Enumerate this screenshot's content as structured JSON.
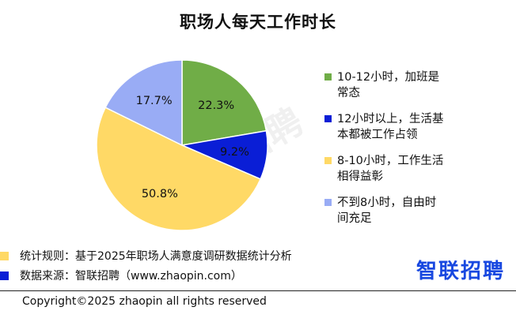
{
  "chart_data": {
    "type": "pie",
    "title": "职场人每天工作时长",
    "slices": [
      {
        "label": "10-12小时，加班是常态",
        "legend_lines": [
          "10-12小时，加班是",
          "常态"
        ],
        "value": 22.3,
        "display": "22.3%",
        "color": "#70ad47"
      },
      {
        "label": "12小时以上，生活基本都被工作占领",
        "legend_lines": [
          "12小时以上，生活基",
          "本都被工作占领"
        ],
        "value": 9.2,
        "display": "9.2%",
        "color": "#0a1ed6"
      },
      {
        "label": "8-10小时，工作生活相得益彰",
        "legend_lines": [
          "8-10小时，工作生活",
          "相得益彰"
        ],
        "value": 50.8,
        "display": "50.8%",
        "color": "#ffd966"
      },
      {
        "label": "不到8小时，自由时间充足",
        "legend_lines": [
          "不到8小时，自由时",
          "间充足"
        ],
        "value": 17.7,
        "display": "17.7%",
        "color": "#99acf5"
      }
    ],
    "start_angle": "12 o'clock",
    "direction": "clockwise",
    "legend_position": "right"
  },
  "watermark": "智联招聘",
  "footnotes": [
    {
      "text": "统计规则：基于2025年职场人满意度调研数据统计分析",
      "color": "#ffd966"
    },
    {
      "text": "数据来源：智联招聘（www.zhaopin.com）",
      "color": "#0a1ed6"
    }
  ],
  "brand": "智联招聘",
  "copyright": "Copyright©2025 zhaopin all rights reserved"
}
